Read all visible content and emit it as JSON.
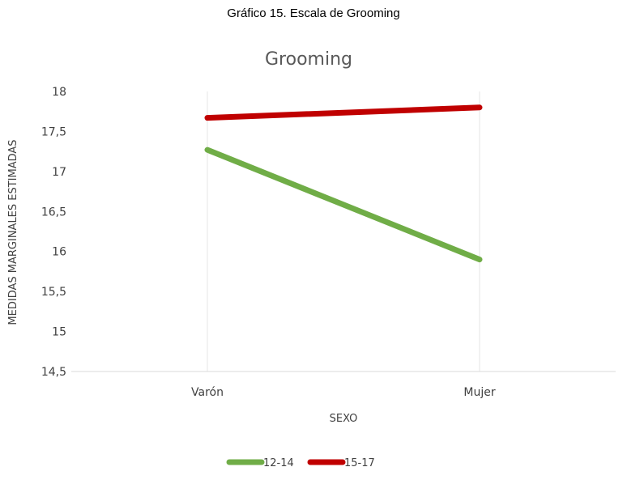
{
  "caption": "Gráfico 15. Escala de Grooming",
  "chart_data": {
    "type": "line",
    "title": "Grooming",
    "xlabel": "SEXO",
    "ylabel": "MEDIDAS MARGINALES ESTIMADAS",
    "categories": [
      "Varón",
      "Mujer"
    ],
    "ylim": [
      14.5,
      18
    ],
    "yticks": [
      14.5,
      15,
      15.5,
      16,
      16.5,
      17,
      17.5,
      18
    ],
    "ytick_labels": [
      "14,5",
      "15",
      "15,5",
      "16",
      "16,5",
      "17",
      "17,5",
      "18"
    ],
    "series": [
      {
        "name": "12-14",
        "values": [
          17.27,
          15.9
        ],
        "color": "#70AD47"
      },
      {
        "name": "15-17",
        "values": [
          17.67,
          17.8
        ],
        "color": "#C00000"
      }
    ],
    "legend_position": "bottom",
    "grid": "vertical"
  }
}
